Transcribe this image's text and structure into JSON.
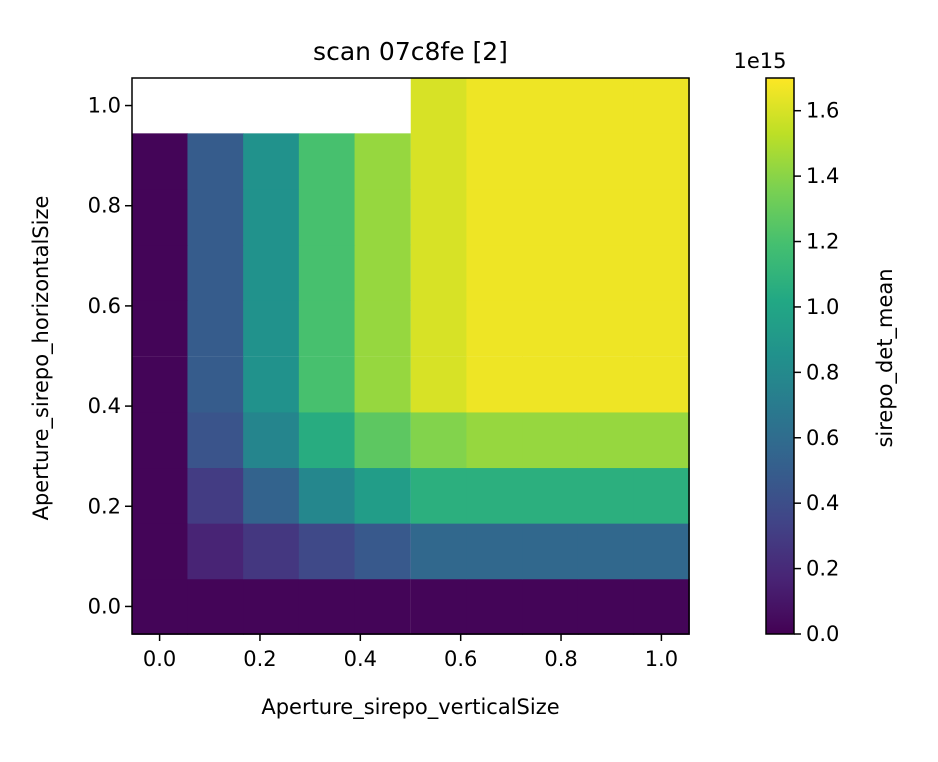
{
  "chart_data": {
    "type": "heatmap",
    "title": "scan 07c8fe [2]",
    "xlabel": "Aperture_sirepo_verticalSize",
    "ylabel": "Aperture_sirepo_horizontalSize",
    "xlim": [
      -0.055,
      1.055
    ],
    "ylim": [
      -0.055,
      1.055
    ],
    "x_ticks": [
      "0.0",
      "0.2",
      "0.4",
      "0.6",
      "0.8",
      "1.0"
    ],
    "y_ticks": [
      "0.0",
      "0.2",
      "0.4",
      "0.6",
      "0.8",
      "1.0"
    ],
    "x_centers": [
      0.0,
      0.111,
      0.222,
      0.333,
      0.444,
      0.556,
      0.667,
      0.778,
      0.889,
      1.0
    ],
    "y_centers": [
      0.0,
      0.111,
      0.222,
      0.333,
      0.444,
      0.556,
      0.667,
      0.778,
      0.889,
      1.0
    ],
    "cell_width": 0.111,
    "values_unit_scale": "1e15",
    "values": [
      [
        0.02,
        0.02,
        0.02,
        0.02,
        0.02,
        0.02,
        0.02,
        0.02,
        0.02,
        0.02
      ],
      [
        0.02,
        0.17,
        0.27,
        0.37,
        0.47,
        0.57,
        0.57,
        0.57,
        0.57,
        0.57
      ],
      [
        0.02,
        0.3,
        0.54,
        0.78,
        0.94,
        1.07,
        1.07,
        1.07,
        1.07,
        1.07
      ],
      [
        0.02,
        0.44,
        0.77,
        1.05,
        1.27,
        1.38,
        1.43,
        1.43,
        1.43,
        1.43
      ],
      [
        0.02,
        0.49,
        0.86,
        1.2,
        1.43,
        1.6,
        1.66,
        1.66,
        1.66,
        1.66
      ],
      [
        0.02,
        0.49,
        0.86,
        1.2,
        1.43,
        1.6,
        1.66,
        1.66,
        1.66,
        1.66
      ],
      [
        0.02,
        0.49,
        0.86,
        1.2,
        1.43,
        1.6,
        1.66,
        1.66,
        1.66,
        1.66
      ],
      [
        0.02,
        0.49,
        0.86,
        1.2,
        1.43,
        1.6,
        1.66,
        1.66,
        1.66,
        1.66
      ],
      [
        0.02,
        0.49,
        0.86,
        1.2,
        1.43,
        1.6,
        1.66,
        1.66,
        1.66,
        1.66
      ],
      [
        null,
        null,
        null,
        null,
        null,
        1.6,
        1.66,
        1.66,
        1.66,
        1.66
      ]
    ],
    "colorbar": {
      "label": "sirepo_det_mean",
      "multiplier": "1e15",
      "range": [
        0.0,
        1.7
      ],
      "ticks": [
        "0.0",
        "0.2",
        "0.4",
        "0.6",
        "0.8",
        "1.0",
        "1.2",
        "1.4",
        "1.6"
      ],
      "colormap": "viridis"
    },
    "grid": false
  }
}
